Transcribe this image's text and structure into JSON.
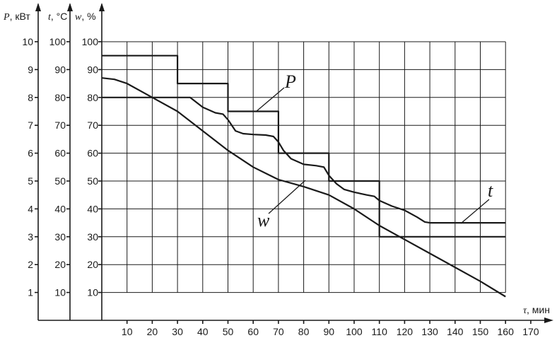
{
  "chart_data": {
    "type": "line",
    "axes": {
      "x": {
        "label": "τ, мин",
        "range": [
          0,
          170
        ],
        "ticks": [
          10,
          20,
          30,
          40,
          50,
          60,
          70,
          80,
          90,
          100,
          110,
          120,
          130,
          140,
          150,
          160,
          170
        ],
        "grid_range": [
          0,
          160
        ]
      },
      "y_power": {
        "label": "P, кВт",
        "range": [
          0,
          10
        ],
        "ticks": [
          1,
          2,
          3,
          4,
          5,
          6,
          7,
          8,
          9,
          10
        ]
      },
      "y_temperature": {
        "label": "t, °C",
        "range": [
          0,
          100
        ],
        "ticks": [
          10,
          20,
          30,
          40,
          50,
          60,
          70,
          80,
          90,
          100
        ]
      },
      "y_moisture": {
        "label": "w, %",
        "range": [
          0,
          100
        ],
        "ticks": [
          10,
          20,
          30,
          40,
          50,
          60,
          70,
          80,
          90,
          100
        ]
      }
    },
    "grid": true,
    "series": [
      {
        "name": "P",
        "axis": "y_power",
        "step": true,
        "x": [
          0,
          30,
          30,
          50,
          50,
          70,
          70,
          90,
          90,
          110,
          110,
          160
        ],
        "y": [
          9.5,
          9.5,
          8.5,
          8.5,
          7.5,
          7.5,
          6,
          6,
          5,
          5,
          3,
          3
        ]
      },
      {
        "name": "t",
        "axis": "y_temperature",
        "x": [
          0,
          10,
          20,
          30,
          35,
          40,
          45,
          48,
          50,
          53,
          56,
          60,
          65,
          68,
          70,
          72,
          75,
          80,
          85,
          88,
          90,
          93,
          96,
          100,
          105,
          108,
          110,
          115,
          120,
          125,
          128,
          130,
          140,
          150,
          160
        ],
        "y": [
          80,
          80,
          80,
          80,
          80,
          76.5,
          74.5,
          74,
          72,
          68,
          67,
          66.7,
          66.5,
          66,
          64,
          61,
          58,
          56,
          55.5,
          55,
          52,
          49,
          47,
          46,
          45,
          44.5,
          43,
          41,
          39.5,
          37,
          35.3,
          35,
          35,
          35,
          35
        ]
      },
      {
        "name": "w",
        "axis": "y_moisture",
        "x": [
          0,
          5,
          10,
          20,
          30,
          40,
          50,
          60,
          70,
          80,
          90,
          100,
          110,
          120,
          130,
          140,
          150,
          160
        ],
        "y": [
          87,
          86.5,
          85,
          80,
          75,
          68,
          61,
          55,
          50.5,
          48,
          45,
          40,
          34,
          29,
          24,
          19,
          14,
          8.5
        ]
      }
    ],
    "annotations": [
      "P",
      "t",
      "w"
    ]
  }
}
